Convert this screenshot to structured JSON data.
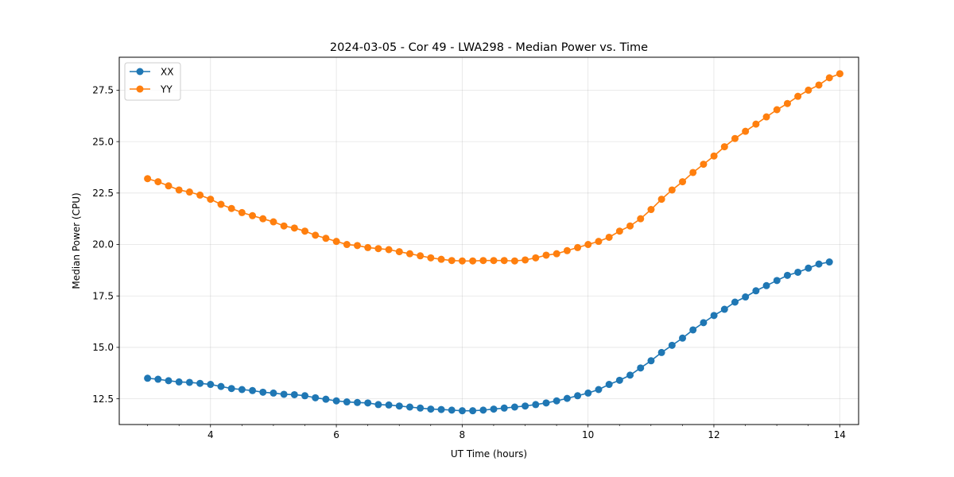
{
  "chart_data": {
    "type": "line",
    "title": "2024-03-05 - Cor 49 - LWA298 - Median Power vs. Time",
    "xlabel": "UT Time (hours)",
    "ylabel": "Median Power (CPU)",
    "xlim": [
      2.55,
      14.3
    ],
    "ylim": [
      11.25,
      29.1
    ],
    "xticks": [
      4,
      6,
      8,
      10,
      12,
      14
    ],
    "xtick_labels": [
      "4",
      "6",
      "8",
      "10",
      "12",
      "14"
    ],
    "xminor_step": 0.5,
    "yticks": [
      12.5,
      15.0,
      17.5,
      20.0,
      22.5,
      25.0,
      27.5
    ],
    "ytick_labels": [
      "12.5",
      "15.0",
      "17.5",
      "20.0",
      "22.5",
      "25.0",
      "27.5"
    ],
    "grid": true,
    "legend_position": "top-left",
    "x_start": 3.0,
    "x_step": 0.1667,
    "series": [
      {
        "name": "XX",
        "color": "#1f77b4",
        "marker": "circle",
        "values": [
          13.5,
          13.45,
          13.38,
          13.32,
          13.3,
          13.25,
          13.2,
          13.1,
          13.0,
          12.95,
          12.9,
          12.82,
          12.78,
          12.72,
          12.7,
          12.65,
          12.55,
          12.48,
          12.4,
          12.35,
          12.32,
          12.3,
          12.22,
          12.2,
          12.15,
          12.1,
          12.05,
          12.0,
          11.98,
          11.95,
          11.92,
          11.92,
          11.95,
          12.0,
          12.05,
          12.1,
          12.15,
          12.22,
          12.3,
          12.4,
          12.52,
          12.65,
          12.78,
          12.95,
          13.2,
          13.4,
          13.65,
          14.0,
          14.35,
          14.75,
          15.1,
          15.45,
          15.85,
          16.2,
          16.55,
          16.85,
          17.2,
          17.45,
          17.75,
          18.0,
          18.25,
          18.5,
          18.65,
          18.85,
          19.05,
          19.15
        ]
      },
      {
        "name": "YY",
        "color": "#ff7f0e",
        "marker": "circle",
        "values": [
          23.2,
          23.05,
          22.85,
          22.65,
          22.55,
          22.4,
          22.2,
          21.95,
          21.75,
          21.55,
          21.4,
          21.25,
          21.1,
          20.9,
          20.8,
          20.65,
          20.45,
          20.3,
          20.15,
          20.0,
          19.95,
          19.85,
          19.8,
          19.75,
          19.65,
          19.55,
          19.45,
          19.35,
          19.28,
          19.22,
          19.2,
          19.2,
          19.22,
          19.22,
          19.22,
          19.2,
          19.25,
          19.35,
          19.48,
          19.55,
          19.7,
          19.85,
          20.0,
          20.15,
          20.35,
          20.65,
          20.9,
          21.25,
          21.7,
          22.2,
          22.65,
          23.05,
          23.5,
          23.9,
          24.3,
          24.75,
          25.15,
          25.5,
          25.85,
          26.2,
          26.55,
          26.85,
          27.2,
          27.5,
          27.75,
          28.1,
          28.3
        ]
      }
    ]
  }
}
